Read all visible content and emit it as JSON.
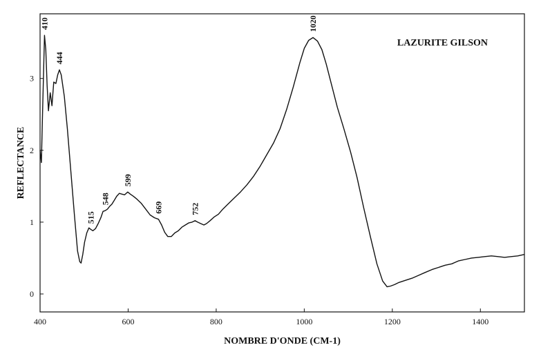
{
  "chart_data": {
    "type": "line",
    "title": "LAZURITE GILSON",
    "xlabel": "NOMBRE D'ONDE (CM-1)",
    "ylabel": "REFLECTANCE",
    "xlim": [
      400,
      1500
    ],
    "ylim": [
      -0.25,
      3.9
    ],
    "x_ticks": [
      400,
      600,
      800,
      1000,
      1200,
      1400
    ],
    "y_ticks": [
      0,
      1,
      2,
      3
    ],
    "grid": false,
    "series": [
      {
        "points": [
          [
            400,
            2.0
          ],
          [
            403,
            1.83
          ],
          [
            406,
            2.6
          ],
          [
            410,
            3.6
          ],
          [
            413,
            3.4
          ],
          [
            416,
            2.9
          ],
          [
            419,
            2.55
          ],
          [
            423,
            2.8
          ],
          [
            427,
            2.62
          ],
          [
            431,
            2.95
          ],
          [
            436,
            2.93
          ],
          [
            440,
            3.05
          ],
          [
            444,
            3.12
          ],
          [
            448,
            3.05
          ],
          [
            455,
            2.75
          ],
          [
            462,
            2.3
          ],
          [
            470,
            1.7
          ],
          [
            478,
            1.1
          ],
          [
            485,
            0.6
          ],
          [
            490,
            0.45
          ],
          [
            493,
            0.43
          ],
          [
            497,
            0.55
          ],
          [
            501,
            0.72
          ],
          [
            506,
            0.85
          ],
          [
            511,
            0.92
          ],
          [
            515,
            0.9
          ],
          [
            520,
            0.88
          ],
          [
            526,
            0.91
          ],
          [
            532,
            0.98
          ],
          [
            538,
            1.06
          ],
          [
            543,
            1.15
          ],
          [
            548,
            1.16
          ],
          [
            553,
            1.18
          ],
          [
            558,
            1.22
          ],
          [
            563,
            1.25
          ],
          [
            568,
            1.3
          ],
          [
            574,
            1.36
          ],
          [
            580,
            1.4
          ],
          [
            586,
            1.39
          ],
          [
            592,
            1.38
          ],
          [
            599,
            1.42
          ],
          [
            605,
            1.39
          ],
          [
            612,
            1.36
          ],
          [
            620,
            1.32
          ],
          [
            630,
            1.26
          ],
          [
            640,
            1.18
          ],
          [
            650,
            1.1
          ],
          [
            660,
            1.06
          ],
          [
            669,
            1.04
          ],
          [
            676,
            0.96
          ],
          [
            683,
            0.86
          ],
          [
            690,
            0.8
          ],
          [
            698,
            0.8
          ],
          [
            706,
            0.85
          ],
          [
            714,
            0.88
          ],
          [
            722,
            0.93
          ],
          [
            730,
            0.96
          ],
          [
            738,
            0.99
          ],
          [
            745,
            1.0
          ],
          [
            752,
            1.02
          ],
          [
            758,
            1.0
          ],
          [
            765,
            0.98
          ],
          [
            772,
            0.96
          ],
          [
            778,
            0.98
          ],
          [
            786,
            1.02
          ],
          [
            795,
            1.07
          ],
          [
            805,
            1.11
          ],
          [
            815,
            1.18
          ],
          [
            825,
            1.24
          ],
          [
            840,
            1.33
          ],
          [
            855,
            1.42
          ],
          [
            870,
            1.52
          ],
          [
            885,
            1.64
          ],
          [
            900,
            1.78
          ],
          [
            915,
            1.94
          ],
          [
            930,
            2.1
          ],
          [
            945,
            2.3
          ],
          [
            960,
            2.57
          ],
          [
            975,
            2.88
          ],
          [
            990,
            3.22
          ],
          [
            1000,
            3.42
          ],
          [
            1010,
            3.53
          ],
          [
            1020,
            3.57
          ],
          [
            1030,
            3.52
          ],
          [
            1040,
            3.4
          ],
          [
            1050,
            3.2
          ],
          [
            1060,
            2.96
          ],
          [
            1075,
            2.6
          ],
          [
            1090,
            2.3
          ],
          [
            1105,
            1.98
          ],
          [
            1120,
            1.62
          ],
          [
            1135,
            1.2
          ],
          [
            1150,
            0.8
          ],
          [
            1165,
            0.42
          ],
          [
            1178,
            0.18
          ],
          [
            1188,
            0.1
          ],
          [
            1196,
            0.11
          ],
          [
            1205,
            0.13
          ],
          [
            1215,
            0.16
          ],
          [
            1230,
            0.19
          ],
          [
            1245,
            0.22
          ],
          [
            1260,
            0.26
          ],
          [
            1275,
            0.3
          ],
          [
            1290,
            0.34
          ],
          [
            1305,
            0.37
          ],
          [
            1320,
            0.4
          ],
          [
            1335,
            0.42
          ],
          [
            1350,
            0.46
          ],
          [
            1365,
            0.48
          ],
          [
            1380,
            0.5
          ],
          [
            1395,
            0.51
          ],
          [
            1410,
            0.52
          ],
          [
            1425,
            0.53
          ],
          [
            1440,
            0.52
          ],
          [
            1455,
            0.51
          ],
          [
            1470,
            0.52
          ],
          [
            1485,
            0.53
          ],
          [
            1500,
            0.55
          ]
        ]
      }
    ],
    "annotations": [
      {
        "text": "410",
        "x": 410,
        "y": 3.6
      },
      {
        "text": "444",
        "x": 444,
        "y": 3.12
      },
      {
        "text": "515",
        "x": 515,
        "y": 0.9
      },
      {
        "text": "548",
        "x": 548,
        "y": 1.16
      },
      {
        "text": "599",
        "x": 599,
        "y": 1.42
      },
      {
        "text": "669",
        "x": 669,
        "y": 1.04
      },
      {
        "text": "752",
        "x": 752,
        "y": 1.02
      },
      {
        "text": "1020",
        "x": 1020,
        "y": 3.57
      }
    ]
  }
}
